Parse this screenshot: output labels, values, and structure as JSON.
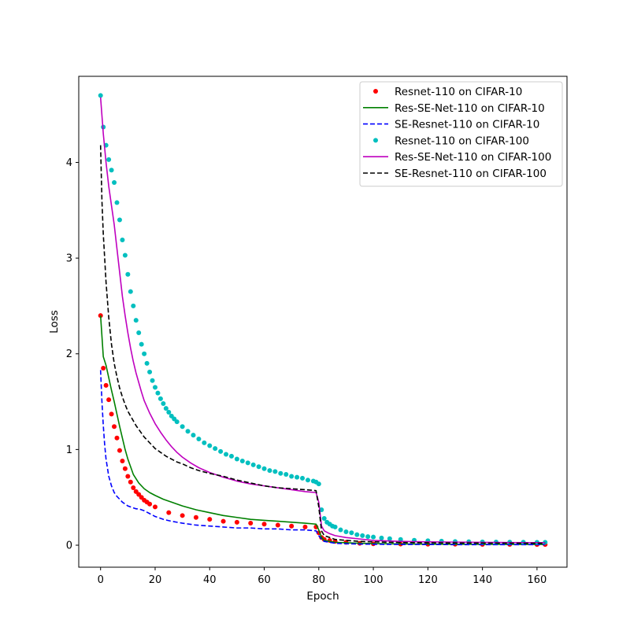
{
  "chart_data": {
    "type": "line",
    "title": "",
    "xlabel": "Epoch",
    "ylabel": "Loss",
    "xlim": [
      -8,
      171
    ],
    "ylim": [
      -0.23,
      4.9
    ],
    "xticks": [
      0,
      20,
      40,
      60,
      80,
      100,
      120,
      140,
      160
    ],
    "yticks": [
      0,
      1,
      2,
      3,
      4
    ],
    "grid": false,
    "legend_position": "top-right",
    "series": [
      {
        "name": "Resnet-110 on CIFAR-10",
        "style": "dots",
        "color": "#ff0000",
        "x": [
          0,
          1,
          2,
          3,
          4,
          5,
          6,
          7,
          8,
          9,
          10,
          11,
          12,
          13,
          14,
          15,
          16,
          17,
          18,
          20,
          25,
          30,
          35,
          40,
          45,
          50,
          55,
          60,
          65,
          70,
          75,
          79,
          80,
          81,
          82,
          84,
          86,
          90,
          95,
          100,
          110,
          120,
          130,
          140,
          150,
          160,
          163
        ],
        "y": [
          2.4,
          1.85,
          1.67,
          1.52,
          1.37,
          1.24,
          1.12,
          0.99,
          0.88,
          0.8,
          0.72,
          0.66,
          0.6,
          0.56,
          0.53,
          0.5,
          0.47,
          0.45,
          0.43,
          0.4,
          0.34,
          0.31,
          0.29,
          0.27,
          0.25,
          0.24,
          0.23,
          0.22,
          0.21,
          0.2,
          0.19,
          0.19,
          0.13,
          0.08,
          0.06,
          0.05,
          0.04,
          0.03,
          0.02,
          0.015,
          0.012,
          0.01,
          0.01,
          0.008,
          0.008,
          0.007,
          0.007
        ]
      },
      {
        "name": "Res-SE-Net-110 on CIFAR-10",
        "style": "solid",
        "color": "#008000",
        "x": [
          0,
          1,
          2,
          3,
          4,
          5,
          6,
          7,
          8,
          9,
          10,
          11,
          12,
          14,
          16,
          18,
          20,
          23,
          26,
          30,
          35,
          40,
          45,
          50,
          55,
          60,
          65,
          70,
          75,
          79,
          80,
          81,
          82,
          84,
          86,
          90,
          95,
          100,
          110,
          120,
          130,
          140,
          150,
          160,
          163
        ],
        "y": [
          2.4,
          1.97,
          1.88,
          1.75,
          1.62,
          1.5,
          1.37,
          1.24,
          1.12,
          1.0,
          0.9,
          0.82,
          0.74,
          0.65,
          0.59,
          0.55,
          0.52,
          0.48,
          0.45,
          0.41,
          0.37,
          0.34,
          0.31,
          0.29,
          0.27,
          0.26,
          0.25,
          0.24,
          0.23,
          0.22,
          0.16,
          0.08,
          0.05,
          0.04,
          0.03,
          0.025,
          0.02,
          0.017,
          0.013,
          0.011,
          0.01,
          0.009,
          0.008,
          0.008,
          0.008
        ]
      },
      {
        "name": "SE-Resnet-110 on CIFAR-10",
        "style": "dashed",
        "color": "#0000ff",
        "x": [
          0,
          0.5,
          1,
          1.5,
          2,
          3,
          4,
          5,
          6,
          7,
          8,
          9,
          10,
          11,
          12,
          13,
          14,
          15,
          16,
          18,
          20,
          23,
          26,
          30,
          35,
          40,
          45,
          50,
          55,
          60,
          65,
          70,
          75,
          79,
          80,
          81,
          82,
          84,
          86,
          90,
          95,
          100,
          110,
          120,
          130,
          140,
          150,
          160,
          163
        ],
        "y": [
          1.83,
          1.5,
          1.25,
          1.05,
          0.9,
          0.72,
          0.62,
          0.55,
          0.51,
          0.48,
          0.45,
          0.43,
          0.41,
          0.4,
          0.39,
          0.38,
          0.38,
          0.37,
          0.36,
          0.33,
          0.3,
          0.27,
          0.25,
          0.23,
          0.21,
          0.2,
          0.19,
          0.18,
          0.18,
          0.17,
          0.17,
          0.16,
          0.16,
          0.15,
          0.1,
          0.06,
          0.04,
          0.03,
          0.02,
          0.015,
          0.012,
          0.01,
          0.008,
          0.007,
          0.006,
          0.006,
          0.006,
          0.006,
          0.006
        ]
      },
      {
        "name": "Resnet-110 on CIFAR-100",
        "style": "dots",
        "color": "#00bfbf",
        "x": [
          0,
          1,
          2,
          3,
          4,
          5,
          6,
          7,
          8,
          9,
          10,
          11,
          12,
          13,
          14,
          15,
          16,
          17,
          18,
          19,
          20,
          21,
          22,
          23,
          24,
          25,
          26,
          27,
          28,
          30,
          32,
          34,
          36,
          38,
          40,
          42,
          44,
          46,
          48,
          50,
          52,
          54,
          56,
          58,
          60,
          62,
          64,
          66,
          68,
          70,
          72,
          74,
          76,
          78,
          79,
          80,
          81,
          82,
          83,
          84,
          85,
          86,
          88,
          90,
          92,
          94,
          96,
          98,
          100,
          103,
          106,
          110,
          115,
          120,
          125,
          130,
          135,
          140,
          145,
          150,
          155,
          160,
          163
        ],
        "y": [
          4.7,
          4.37,
          4.18,
          4.03,
          3.92,
          3.79,
          3.58,
          3.4,
          3.19,
          3.03,
          2.83,
          2.65,
          2.5,
          2.35,
          2.22,
          2.1,
          2.0,
          1.9,
          1.81,
          1.72,
          1.65,
          1.59,
          1.53,
          1.48,
          1.43,
          1.39,
          1.35,
          1.32,
          1.29,
          1.24,
          1.19,
          1.15,
          1.11,
          1.07,
          1.04,
          1.01,
          0.98,
          0.95,
          0.93,
          0.9,
          0.88,
          0.86,
          0.84,
          0.82,
          0.8,
          0.78,
          0.77,
          0.75,
          0.74,
          0.72,
          0.71,
          0.7,
          0.68,
          0.67,
          0.66,
          0.64,
          0.37,
          0.28,
          0.24,
          0.22,
          0.2,
          0.19,
          0.16,
          0.14,
          0.13,
          0.11,
          0.1,
          0.09,
          0.085,
          0.075,
          0.068,
          0.06,
          0.052,
          0.046,
          0.042,
          0.038,
          0.036,
          0.034,
          0.033,
          0.032,
          0.031,
          0.03,
          0.03
        ]
      },
      {
        "name": "Res-SE-Net-110 on CIFAR-100",
        "style": "solid",
        "color": "#bf00bf",
        "x": [
          0,
          1,
          2,
          3,
          4,
          5,
          6,
          7,
          8,
          9,
          10,
          11,
          12,
          13,
          14,
          15,
          16,
          18,
          20,
          22,
          24,
          26,
          28,
          30,
          33,
          36,
          40,
          45,
          50,
          55,
          60,
          65,
          70,
          75,
          79,
          80,
          81,
          82,
          84,
          86,
          90,
          95,
          100,
          110,
          120,
          130,
          140,
          150,
          160,
          163
        ],
        "y": [
          4.68,
          4.3,
          4.0,
          3.75,
          3.55,
          3.35,
          3.1,
          2.85,
          2.6,
          2.4,
          2.22,
          2.06,
          1.92,
          1.8,
          1.7,
          1.6,
          1.51,
          1.38,
          1.27,
          1.18,
          1.1,
          1.03,
          0.97,
          0.92,
          0.86,
          0.81,
          0.76,
          0.71,
          0.67,
          0.64,
          0.62,
          0.6,
          0.58,
          0.56,
          0.55,
          0.45,
          0.2,
          0.15,
          0.12,
          0.1,
          0.08,
          0.065,
          0.05,
          0.04,
          0.035,
          0.032,
          0.03,
          0.028,
          0.027,
          0.027
        ]
      },
      {
        "name": "SE-Resnet-110 on CIFAR-100",
        "style": "dashed",
        "color": "#000000",
        "x": [
          0,
          0.5,
          1,
          1.5,
          2,
          3,
          4,
          5,
          6,
          7,
          8,
          9,
          10,
          11,
          12,
          13,
          14,
          15,
          16,
          18,
          20,
          22,
          24,
          26,
          28,
          30,
          33,
          36,
          40,
          45,
          50,
          55,
          60,
          65,
          70,
          75,
          79,
          80,
          81,
          82,
          84,
          86,
          90,
          95,
          100,
          110,
          120,
          130,
          140,
          150,
          160,
          163
        ],
        "y": [
          4.18,
          3.6,
          3.25,
          3.0,
          2.75,
          2.38,
          2.1,
          1.9,
          1.76,
          1.64,
          1.55,
          1.47,
          1.4,
          1.35,
          1.3,
          1.25,
          1.21,
          1.17,
          1.13,
          1.07,
          1.01,
          0.97,
          0.93,
          0.9,
          0.87,
          0.85,
          0.81,
          0.78,
          0.75,
          0.72,
          0.68,
          0.65,
          0.62,
          0.6,
          0.59,
          0.58,
          0.57,
          0.4,
          0.15,
          0.1,
          0.08,
          0.06,
          0.05,
          0.04,
          0.035,
          0.028,
          0.025,
          0.023,
          0.022,
          0.021,
          0.02,
          0.02
        ]
      }
    ]
  }
}
